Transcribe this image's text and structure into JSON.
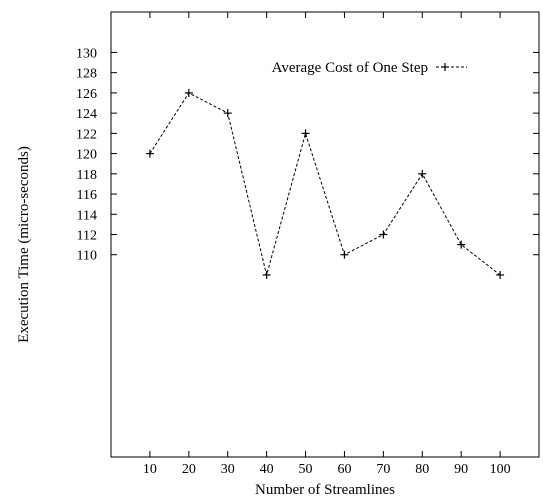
{
  "chart_data": {
    "type": "line",
    "title": "",
    "xlabel": "Number of Streamlines",
    "ylabel": "Execution Time (micro-seconds)",
    "x": [
      10,
      20,
      30,
      40,
      50,
      60,
      70,
      80,
      90,
      100
    ],
    "x_ticks": [
      10,
      20,
      30,
      40,
      50,
      60,
      70,
      80,
      90,
      100
    ],
    "xlim": [
      0,
      110
    ],
    "y_ticks": [
      110,
      112,
      114,
      116,
      118,
      120,
      122,
      124,
      126,
      128,
      130
    ],
    "ylim": [
      90,
      134
    ],
    "grid": false,
    "legend_position": "top-right",
    "series": [
      {
        "name": "Average Cost of One Step",
        "values": [
          120,
          126,
          124,
          108,
          122,
          110,
          112,
          118,
          111,
          108
        ],
        "line_style": "dashed",
        "marker": "+",
        "color": "#000000"
      }
    ]
  }
}
